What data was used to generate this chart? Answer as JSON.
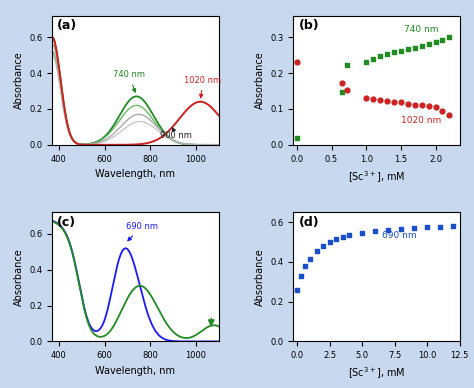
{
  "background_color": "#c8d8ef",
  "panel_bg": "#ffffff",
  "panel_a": {
    "label": "(a)",
    "xlabel": "Wavelength, nm",
    "ylabel": "Absorbance",
    "xlim": [
      370,
      1100
    ],
    "ylim": [
      0,
      0.72
    ],
    "yticks": [
      0.0,
      0.2,
      0.4,
      0.6
    ]
  },
  "panel_b": {
    "label": "(b)",
    "xlabel": "[Sc$^{3+}$], mM",
    "ylabel": "Absorbance",
    "xlim": [
      -0.05,
      2.35
    ],
    "ylim": [
      0,
      0.36
    ],
    "yticks": [
      0.0,
      0.1,
      0.2,
      0.3
    ],
    "green_x": [
      0.0,
      0.65,
      0.72,
      1.0,
      1.1,
      1.2,
      1.3,
      1.4,
      1.5,
      1.6,
      1.7,
      1.8,
      1.9,
      2.0,
      2.1,
      2.2
    ],
    "green_y": [
      0.02,
      0.148,
      0.222,
      0.232,
      0.24,
      0.248,
      0.253,
      0.258,
      0.262,
      0.266,
      0.27,
      0.274,
      0.28,
      0.287,
      0.293,
      0.3
    ],
    "red_x": [
      0.0,
      0.65,
      0.72,
      1.0,
      1.1,
      1.2,
      1.3,
      1.4,
      1.5,
      1.6,
      1.7,
      1.8,
      1.9,
      2.0,
      2.1,
      2.2
    ],
    "red_y": [
      0.232,
      0.172,
      0.152,
      0.13,
      0.128,
      0.125,
      0.123,
      0.12,
      0.118,
      0.115,
      0.112,
      0.11,
      0.107,
      0.105,
      0.095,
      0.082
    ]
  },
  "panel_c": {
    "label": "(c)",
    "xlabel": "Wavelength, nm",
    "ylabel": "Absorbance",
    "xlim": [
      370,
      1100
    ],
    "ylim": [
      0,
      0.72
    ],
    "yticks": [
      0.0,
      0.2,
      0.4,
      0.6
    ]
  },
  "panel_d": {
    "label": "(d)",
    "xlabel": "[Sc$^{3+}$], mM",
    "ylabel": "Absorbance",
    "xlim": [
      -0.3,
      12.5
    ],
    "ylim": [
      0,
      0.65
    ],
    "yticks": [
      0.0,
      0.2,
      0.4,
      0.6
    ],
    "blue_x": [
      0.0,
      0.3,
      0.6,
      1.0,
      1.5,
      2.0,
      2.5,
      3.0,
      3.5,
      4.0,
      5.0,
      6.0,
      7.0,
      8.0,
      9.0,
      10.0,
      11.0,
      12.0
    ],
    "blue_y": [
      0.258,
      0.33,
      0.378,
      0.415,
      0.455,
      0.48,
      0.5,
      0.515,
      0.527,
      0.535,
      0.547,
      0.555,
      0.56,
      0.565,
      0.57,
      0.573,
      0.576,
      0.578
    ]
  }
}
